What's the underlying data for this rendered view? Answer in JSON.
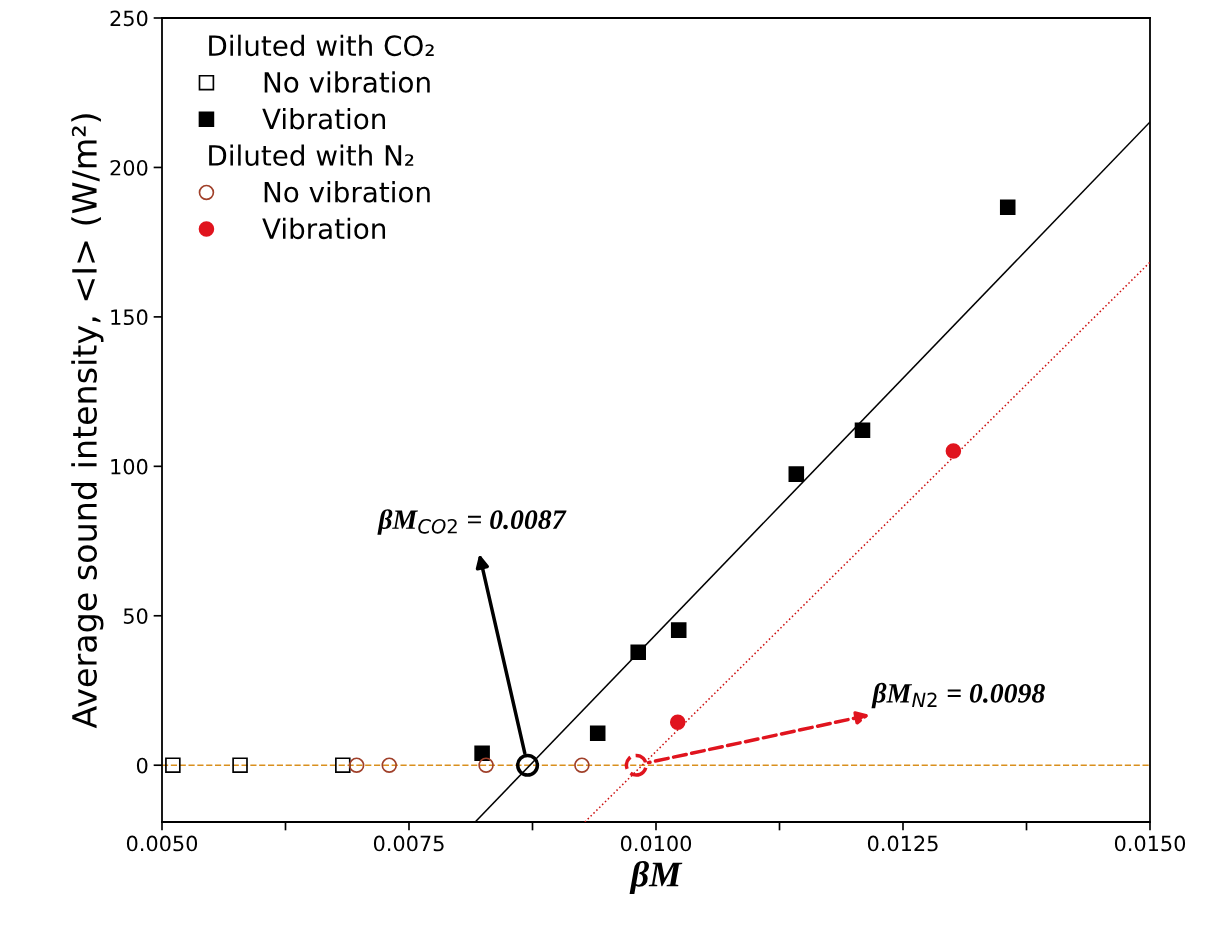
{
  "chart_data": {
    "type": "scatter",
    "xlabel": "βM",
    "ylabel": "Average sound intensity, <I> (W/m²)",
    "xlim": [
      0.005,
      0.015
    ],
    "ylim": [
      -19,
      250
    ],
    "xticks": [
      {
        "value": 0.005,
        "label": "0.0050"
      },
      {
        "value": 0.00625,
        "label": null
      },
      {
        "value": 0.0075,
        "label": "0.0075"
      },
      {
        "value": 0.00875,
        "label": null
      },
      {
        "value": 0.01,
        "label": "0.0100"
      },
      {
        "value": 0.01125,
        "label": null
      },
      {
        "value": 0.0125,
        "label": "0.0125"
      },
      {
        "value": 0.01375,
        "label": null
      },
      {
        "value": 0.015,
        "label": "0.0150"
      }
    ],
    "yticks": [
      0,
      50,
      100,
      150,
      200,
      250
    ],
    "grid": false,
    "legend": "top left",
    "legend_title": "Diluted with CO₂",
    "series": [
      {
        "name": "No vibration",
        "marker": "square",
        "color": "#000000",
        "x": [
          0.00511,
          0.00579,
          0.00683
        ],
        "values": [
          0,
          0,
          0
        ]
      },
      {
        "name": "Vibration",
        "marker": "square",
        "color": "#000000",
        "x": [
          0.00824,
          0.00941,
          0.00982,
          0.01023,
          0.01142,
          0.01209,
          0.01356
        ],
        "values": [
          4,
          10.7,
          37.8,
          45.2,
          97.4,
          112.1,
          186.7
        ]
      },
      {
        "name": "No vibration",
        "marker": "circle",
        "color": "#a0402a",
        "x": [
          0.00697,
          0.0073,
          0.00828,
          0.00925
        ],
        "values": [
          0,
          0,
          0,
          0
        ]
      },
      {
        "name": "Vibration",
        "marker": "circle",
        "color": "#e0141e",
        "x": [
          0.01022,
          0.01301
        ],
        "values": [
          14.4,
          105.1
        ]
      },
      {
        "type": "line",
        "color": "#000000",
        "line_style": "solid",
        "x": [
          0.00817,
          0.015
        ],
        "values": [
          -19,
          215.2
        ]
      },
      {
        "type": "line",
        "color": "#cc1010",
        "line_style": "dotted",
        "x": [
          0.00928,
          0.015
        ],
        "values": [
          -19,
          168.3
        ]
      },
      {
        "marker": "circle",
        "color": "#000000",
        "line_style": "solid",
        "x": [
          0.0087
        ],
        "values": [
          0
        ]
      },
      {
        "marker": "circle",
        "color": "#e0141e",
        "line_style": "dashed",
        "x": [
          0.0098
        ],
        "values": [
          0
        ]
      }
    ],
    "ref_lines": [
      {
        "axis": "y",
        "value": 0,
        "color": "#d9901e",
        "line_style": "dashed"
      }
    ],
    "annotations": [
      "βM$_{CO2}$ = 0.0087",
      "βM$_{N2}$ = 0.0098",
      "Diluted with N₂"
    ]
  }
}
